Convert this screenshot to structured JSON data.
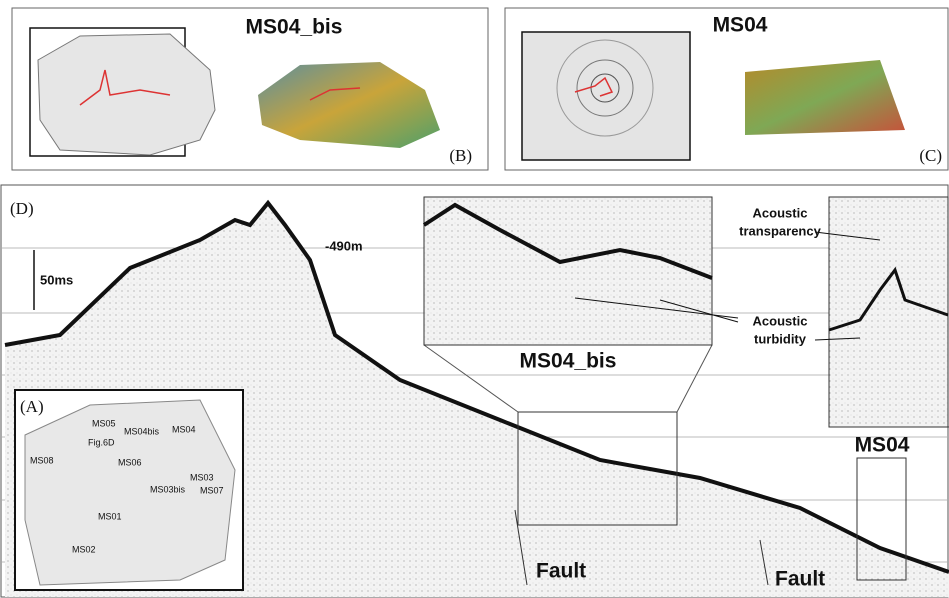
{
  "panel_b": {
    "title": "MS04_bis",
    "label": "(B)"
  },
  "panel_c": {
    "title": "MS04",
    "label": "(C)"
  },
  "panel_d": {
    "label": "(D)",
    "scale": "50ms",
    "depth": "-490m",
    "zoom_left": {
      "title": "MS04_bis"
    },
    "zoom_right": {
      "title": "MS04"
    },
    "transparency": [
      "Acoustic",
      "transparency"
    ],
    "turbidity": [
      "Acoustic",
      "turbidity"
    ],
    "faults": [
      "Fault",
      "Fault"
    ]
  },
  "panel_a": {
    "label": "(A)",
    "sites": [
      "MS05",
      "MS04bis",
      "MS04",
      "Fig.6D",
      "MS06",
      "MS08",
      "MS03",
      "MS03bis",
      "MS07",
      "MS01",
      "MS02"
    ]
  }
}
